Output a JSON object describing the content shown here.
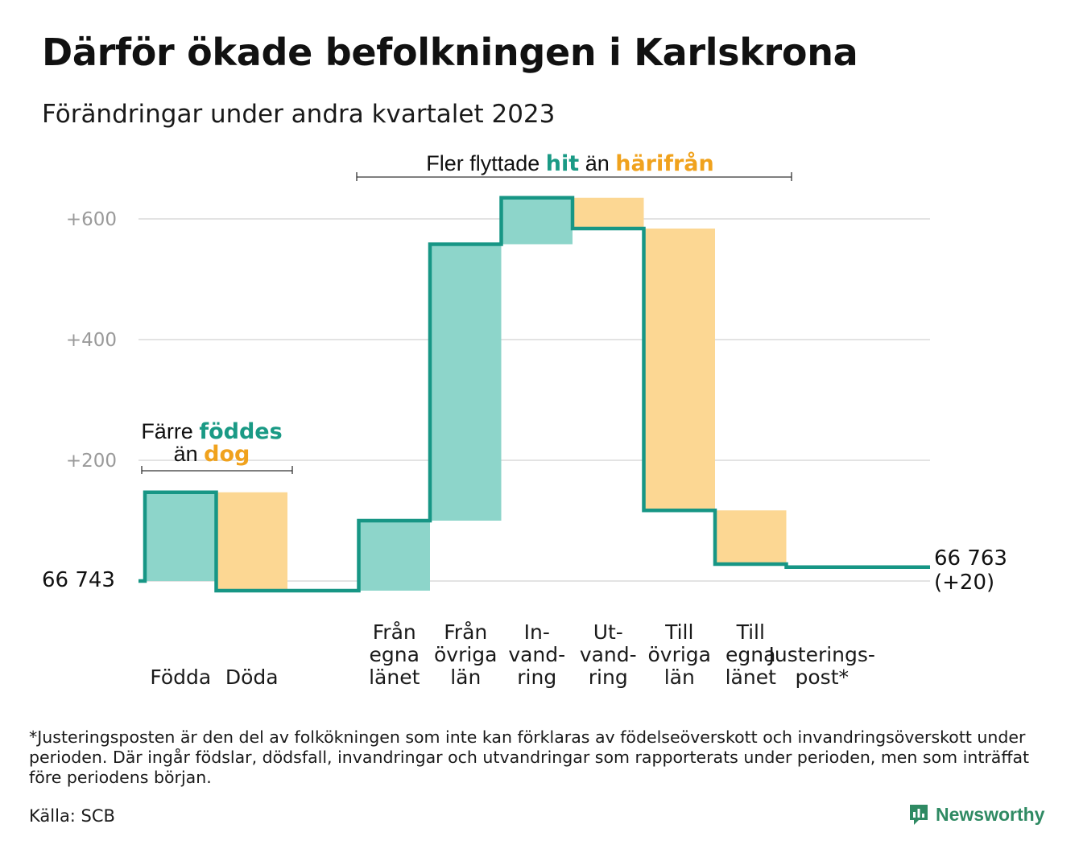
{
  "title": "Därför ökade befolkningen i Karlskrona",
  "subtitle": "Förändringar under andra kvartalet 2023",
  "colors": {
    "inflow": "#8dd5ca",
    "outflow": "#fcd793",
    "line": "#179685",
    "grid": "#e3e3e3",
    "hit_text": "#1a9a85",
    "out_text": "#f0a21d"
  },
  "annotations": {
    "births": {
      "line1_a": "Färre ",
      "line1_b": "föddes",
      "line2_a": "än ",
      "line2_b": "dog"
    },
    "migration": {
      "a": "Fler flyttade ",
      "b": "hit",
      "c": " än ",
      "d": "härifrån"
    }
  },
  "start_label": "66  743",
  "end_label_line1": "66 763",
  "end_label_line2": "(+20)",
  "chart_data": {
    "type": "waterfall",
    "start_value": 66743,
    "end_value": 66763,
    "yticks": [
      {
        "value": 600,
        "label": "+600"
      },
      {
        "value": 400,
        "label": "+400"
      },
      {
        "value": 200,
        "label": "+200"
      }
    ],
    "ylim": [
      -20,
      640
    ],
    "steps": [
      {
        "name": "Födda",
        "label_lines": [
          "Födda"
        ],
        "change": 147,
        "kind": "in"
      },
      {
        "name": "Döda",
        "label_lines": [
          "Döda"
        ],
        "change": -163,
        "kind": "out"
      },
      {
        "name": "gap",
        "label_lines": [],
        "change": 0,
        "kind": "gap"
      },
      {
        "name": "Från egna länet",
        "label_lines": [
          "Från",
          "egna",
          "länet"
        ],
        "change": 116,
        "kind": "in"
      },
      {
        "name": "Från övriga län",
        "label_lines": [
          "Från",
          "övriga",
          "län"
        ],
        "change": 458,
        "kind": "in"
      },
      {
        "name": "Invandring",
        "label_lines": [
          "In-",
          "vand-",
          "ring"
        ],
        "change": 77,
        "kind": "in"
      },
      {
        "name": "Utvandring",
        "label_lines": [
          "Ut-",
          "vand-",
          "ring"
        ],
        "change": -51,
        "kind": "out"
      },
      {
        "name": "Till övriga län",
        "label_lines": [
          "Till",
          "övriga",
          "län"
        ],
        "change": -467,
        "kind": "out"
      },
      {
        "name": "Till egna länet",
        "label_lines": [
          "Till",
          "egna",
          "länet"
        ],
        "change": -89,
        "kind": "out"
      },
      {
        "name": "Justeringspost*",
        "label_lines": [
          "Justerings-",
          "post*"
        ],
        "change": -5,
        "kind": "adjust"
      }
    ]
  },
  "footnote": "*Justeringsposten är den del av folkökningen som inte kan förklaras av födelseöverskott och invandringsöverskott under perioden. Där ingår födslar, dödsfall, invandringar och utvandringar som rapporterats under perioden, men som inträffat före periodens början.",
  "source": "Källa: SCB",
  "brand": {
    "name": "Newsworthy",
    "icon": "newsworthy-chart-bubble-icon"
  }
}
